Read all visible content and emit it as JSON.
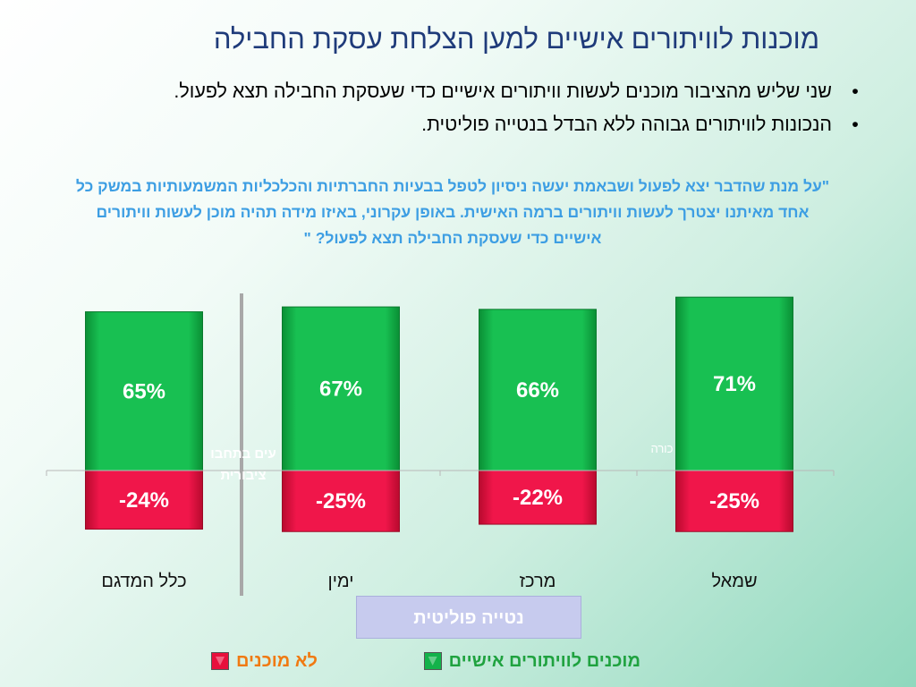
{
  "title": "מוכנות לוויתורים אישיים למען הצלחת עסקת החבילה",
  "bullets": [
    "שני שליש מהציבור מוכנים לעשות וויתורים אישיים כדי שעסקת החבילה תצא לפעול.",
    "הנכונות לוויתורים גבוהה ללא הבדל בנטייה פוליטית."
  ],
  "bullet_marker": "•",
  "quote": "\"על מנת שהדבר יצא לפעול ושבאמת יעשה ניסיון לטפל בבעיות החברתיות והכלכליות המשמעותיות במשק כל אחד מאיתנו יצטרך לעשות וויתורים ברמה האישית. באופן עקרוני, באיזו מידה תהיה מוכן לעשות וויתורים אישיים כדי שעסקת החבילה תצא לפעול? \"",
  "overlap_text": {
    "left_line1": "עים בתחבו",
    "left_line2": "ציבורית",
    "right": "כורה"
  },
  "xaxis_title": "נטייה פוליטית",
  "legend": {
    "ready": "מוכנים לוויתורים אישיים",
    "not_ready": "לא מוכנים"
  },
  "colors": {
    "title": "#1f3b7a",
    "quote": "#3d9ee3",
    "ready": "#13b24a",
    "not_ready": "#e8103c",
    "legend_ready_text": "#1fa23f",
    "legend_not_ready_text": "#f07a12",
    "axis_box": "#c7cbee"
  },
  "chart_data": {
    "type": "bar",
    "categories": [
      "כלל המדגם",
      "ימין",
      "מרכז",
      "שמאל"
    ],
    "series": [
      {
        "name": "מוכנים לוויתורים אישיים",
        "values": [
          65,
          67,
          66,
          71
        ]
      },
      {
        "name": "לא מוכנים",
        "values": [
          -24,
          -25,
          -22,
          -25
        ]
      }
    ],
    "value_labels": {
      "ready": [
        "65%",
        "67%",
        "66%",
        "71%"
      ],
      "not_ready": [
        "-24%",
        "-25%",
        "-22%",
        "-25%"
      ]
    },
    "stacked": "diverging",
    "ylim": [
      -27,
      72
    ],
    "xlabel": "נטייה פוליטית",
    "ylabel": "",
    "grid": false,
    "legend_position": "bottom"
  }
}
